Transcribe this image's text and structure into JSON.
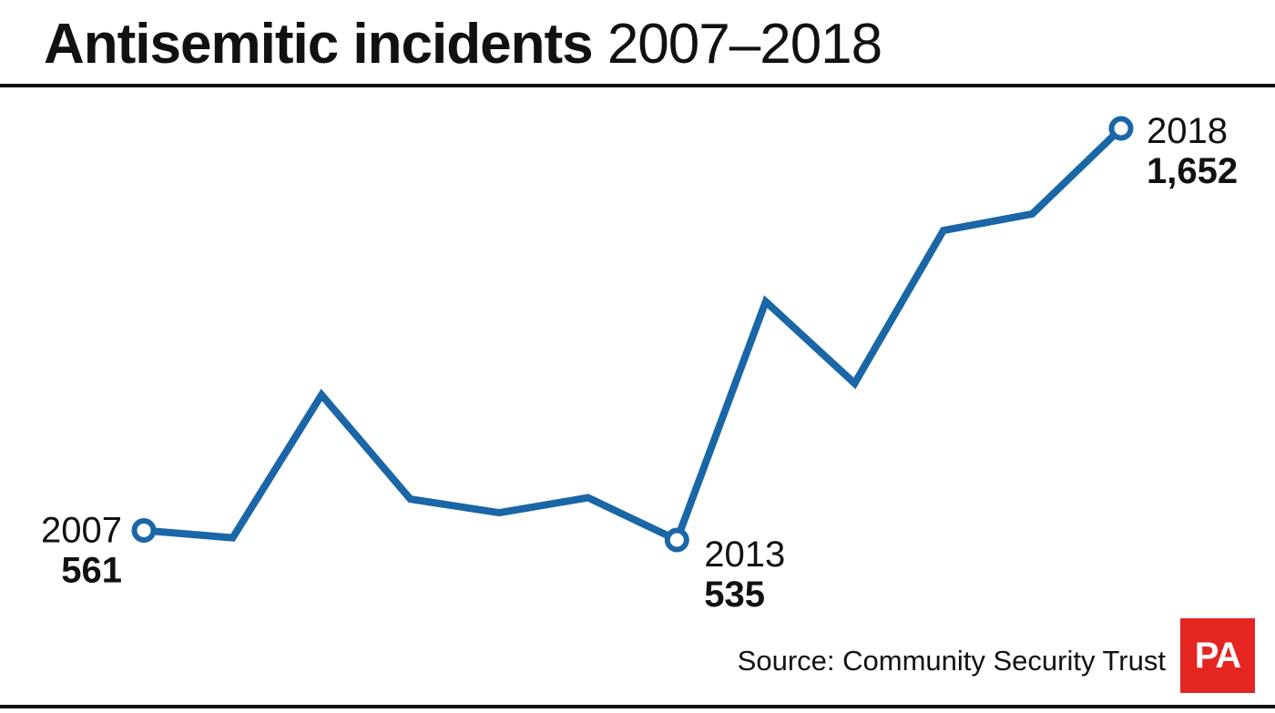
{
  "title": {
    "bold_part": "Antisemitic incidents",
    "light_part": "2007–2018"
  },
  "source": "Source: Community Security Trust",
  "logo": {
    "text": "PA",
    "color": "#e52521"
  },
  "colors": {
    "line": "#1a66a6",
    "text": "#111111",
    "background": "#ffffff"
  },
  "chart_data": {
    "type": "line",
    "title": "Antisemitic incidents 2007–2018",
    "x": [
      2007,
      2008,
      2009,
      2010,
      2011,
      2012,
      2013,
      2014,
      2015,
      2016,
      2017,
      2018
    ],
    "series": [
      {
        "values": [
          561,
          541,
          929,
          646,
          609,
          650,
          535,
          1182,
          960,
          1375,
          1420,
          1652
        ]
      }
    ],
    "annotations": [
      {
        "x": 2007,
        "year_label": "2007",
        "value_label": "561",
        "side": "left"
      },
      {
        "x": 2013,
        "year_label": "2013",
        "value_label": "535",
        "side": "right-below"
      },
      {
        "x": 2018,
        "year_label": "2018",
        "value_label": "1,652",
        "side": "right"
      }
    ],
    "axes_visible": false,
    "grid": false,
    "legend": "none"
  }
}
